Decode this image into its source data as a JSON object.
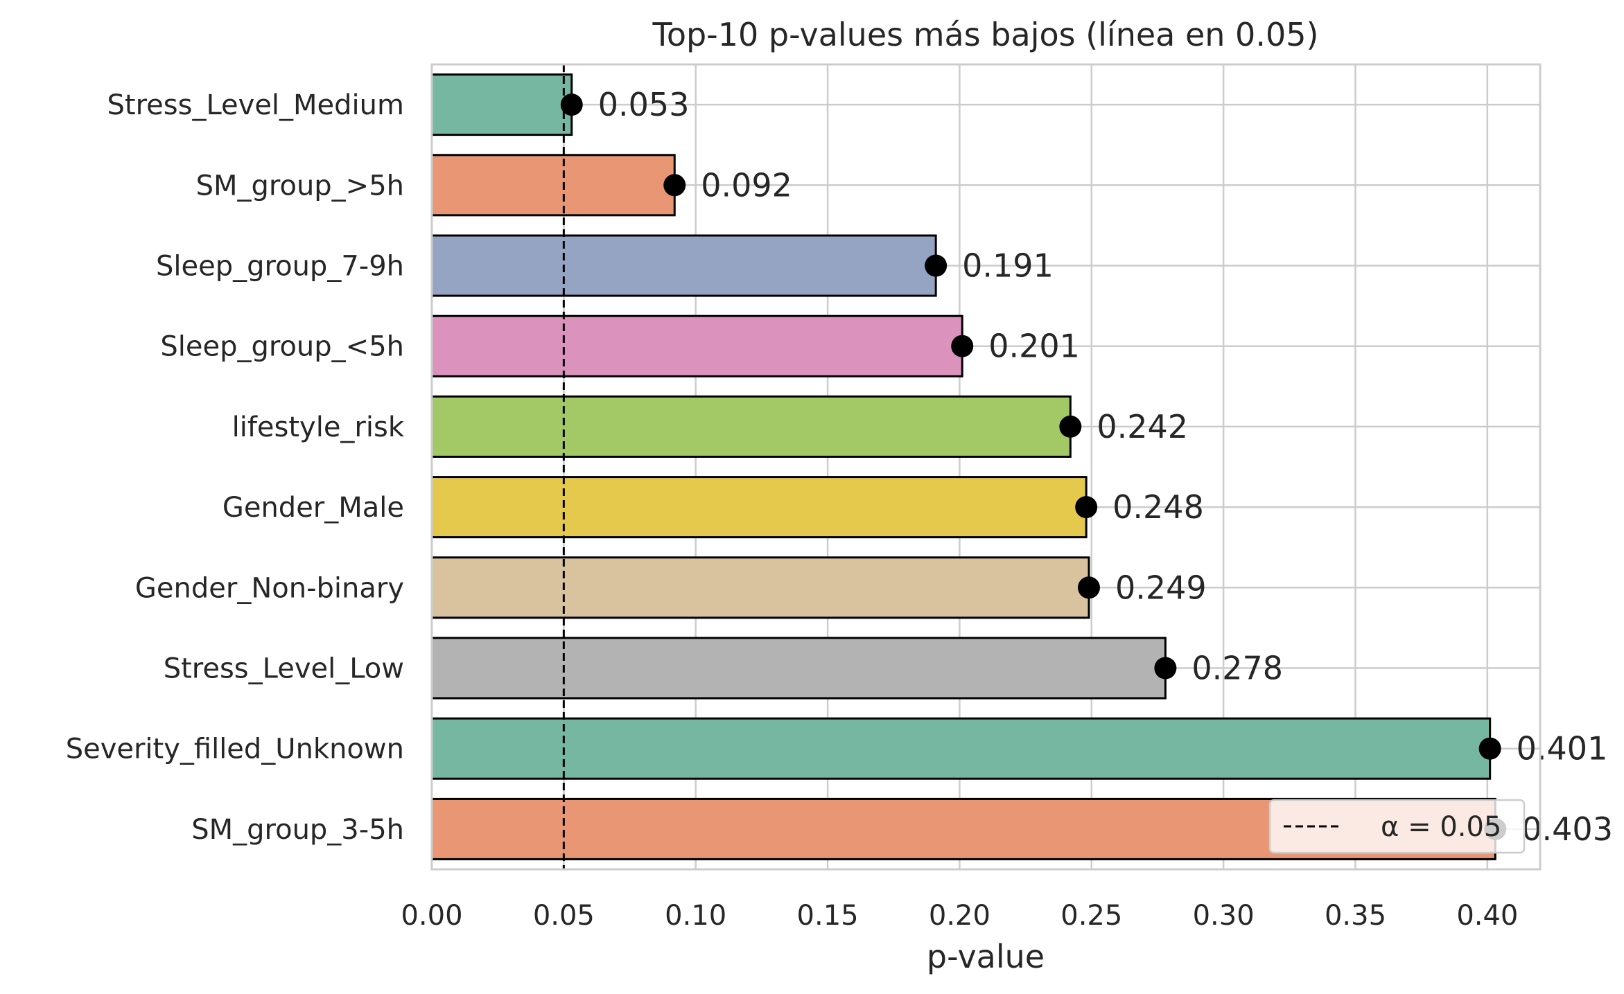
{
  "chart_data": {
    "type": "bar",
    "orientation": "horizontal",
    "title": "Top-10 p-values más bajos (línea en 0.05)",
    "xlabel": "p-value",
    "ylabel": "",
    "xlim": [
      0,
      0.42
    ],
    "xticks": [
      "0.00",
      "0.05",
      "0.10",
      "0.15",
      "0.20",
      "0.25",
      "0.30",
      "0.35",
      "0.40"
    ],
    "grid": true,
    "categories": [
      "Stress_Level_Medium",
      "SM_group_>5h",
      "Sleep_group_7-9h",
      "Sleep_group_<5h",
      "lifestyle_risk",
      "Gender_Male",
      "Gender_Non-binary",
      "Stress_Level_Low",
      "Severity_filled_Unknown",
      "SM_group_3-5h"
    ],
    "values": [
      0.053,
      0.092,
      0.191,
      0.201,
      0.242,
      0.248,
      0.249,
      0.278,
      0.401,
      0.403
    ],
    "data_labels": [
      "0.053",
      "0.092",
      "0.191",
      "0.201",
      "0.242",
      "0.248",
      "0.249",
      "0.278",
      "0.401",
      "0.403"
    ],
    "colors": [
      "#76b7a1",
      "#e99675",
      "#95a4c3",
      "#db93be",
      "#a3c966",
      "#e4c94d",
      "#d9c39f",
      "#b3b3b3",
      "#76b7a1",
      "#e99675"
    ],
    "reference_line": {
      "value": 0.05,
      "style": "dashed",
      "color": "#000000"
    },
    "legend": {
      "position": "lower-right",
      "entries": [
        "α = 0.05"
      ]
    }
  }
}
